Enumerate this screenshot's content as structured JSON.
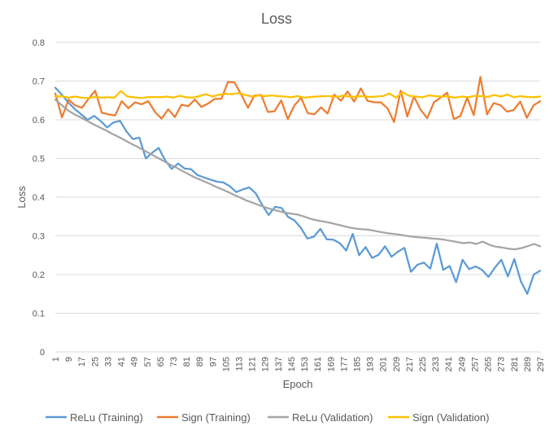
{
  "chart_data": {
    "type": "line",
    "title": "Loss",
    "xlabel": "Epoch",
    "ylabel": "Loss",
    "ylim": [
      0,
      0.8
    ],
    "yticks": [
      "0",
      "0.1",
      "0.2",
      "0.3",
      "0.4",
      "0.5",
      "0.6",
      "0.7",
      "0.8"
    ],
    "grid": "horizontal",
    "legend_position": "bottom",
    "x_start": 1,
    "x_step": 4,
    "x_tick_labels": [
      "1",
      "9",
      "17",
      "25",
      "33",
      "41",
      "49",
      "57",
      "65",
      "73",
      "81",
      "89",
      "97",
      "105",
      "113",
      "121",
      "129",
      "137",
      "145",
      "153",
      "161",
      "169",
      "177",
      "185",
      "193",
      "201",
      "209",
      "217",
      "225",
      "233",
      "241",
      "249",
      "257",
      "265",
      "273",
      "281",
      "289",
      "297"
    ],
    "series": [
      {
        "name": "ReLu (Training)",
        "color": "#5B9BD5",
        "values": [
          0.683,
          0.665,
          0.645,
          0.628,
          0.614,
          0.6,
          0.61,
          0.597,
          0.58,
          0.593,
          0.597,
          0.57,
          0.55,
          0.554,
          0.5,
          0.515,
          0.527,
          0.495,
          0.473,
          0.487,
          0.474,
          0.472,
          0.457,
          0.451,
          0.445,
          0.44,
          0.438,
          0.428,
          0.413,
          0.42,
          0.425,
          0.41,
          0.38,
          0.354,
          0.375,
          0.372,
          0.349,
          0.34,
          0.32,
          0.293,
          0.298,
          0.318,
          0.291,
          0.29,
          0.281,
          0.262,
          0.305,
          0.25,
          0.271,
          0.243,
          0.251,
          0.273,
          0.246,
          0.259,
          0.269,
          0.207,
          0.225,
          0.231,
          0.215,
          0.28,
          0.212,
          0.222,
          0.18,
          0.238,
          0.214,
          0.221,
          0.212,
          0.194,
          0.218,
          0.238,
          0.195,
          0.24,
          0.183,
          0.15,
          0.2,
          0.21
        ]
      },
      {
        "name": "Sign (Training)",
        "color": "#ED7D31",
        "values": [
          0.668,
          0.606,
          0.652,
          0.637,
          0.631,
          0.654,
          0.675,
          0.618,
          0.614,
          0.611,
          0.648,
          0.63,
          0.645,
          0.64,
          0.648,
          0.62,
          0.603,
          0.627,
          0.607,
          0.639,
          0.635,
          0.652,
          0.633,
          0.642,
          0.654,
          0.654,
          0.698,
          0.696,
          0.665,
          0.631,
          0.663,
          0.664,
          0.62,
          0.622,
          0.65,
          0.602,
          0.637,
          0.657,
          0.617,
          0.614,
          0.632,
          0.616,
          0.665,
          0.649,
          0.673,
          0.647,
          0.681,
          0.649,
          0.645,
          0.645,
          0.63,
          0.594,
          0.675,
          0.608,
          0.66,
          0.626,
          0.604,
          0.645,
          0.657,
          0.67,
          0.602,
          0.61,
          0.657,
          0.612,
          0.711,
          0.614,
          0.643,
          0.638,
          0.621,
          0.625,
          0.647,
          0.605,
          0.637,
          0.648
        ]
      },
      {
        "name": "ReLu (Validation)",
        "color": "#A5A5A5",
        "values": [
          0.652,
          0.638,
          0.624,
          0.614,
          0.606,
          0.597,
          0.588,
          0.58,
          0.572,
          0.563,
          0.555,
          0.546,
          0.537,
          0.529,
          0.52,
          0.511,
          0.502,
          0.493,
          0.484,
          0.476,
          0.467,
          0.458,
          0.45,
          0.443,
          0.436,
          0.428,
          0.421,
          0.414,
          0.406,
          0.399,
          0.391,
          0.385,
          0.379,
          0.373,
          0.368,
          0.364,
          0.36,
          0.357,
          0.355,
          0.35,
          0.344,
          0.34,
          0.337,
          0.334,
          0.33,
          0.326,
          0.322,
          0.319,
          0.317,
          0.316,
          0.313,
          0.31,
          0.307,
          0.305,
          0.303,
          0.3,
          0.298,
          0.296,
          0.295,
          0.293,
          0.292,
          0.29,
          0.287,
          0.284,
          0.281,
          0.283,
          0.279,
          0.285,
          0.277,
          0.272,
          0.27,
          0.267,
          0.265,
          0.268,
          0.273,
          0.279,
          0.273
        ]
      },
      {
        "name": "Sign (Validation)",
        "color": "#FFC000",
        "values": [
          0.66,
          0.661,
          0.657,
          0.66,
          0.657,
          0.656,
          0.659,
          0.657,
          0.658,
          0.657,
          0.674,
          0.66,
          0.658,
          0.656,
          0.658,
          0.659,
          0.658,
          0.66,
          0.657,
          0.662,
          0.658,
          0.657,
          0.661,
          0.666,
          0.66,
          0.665,
          0.667,
          0.666,
          0.669,
          0.664,
          0.66,
          0.663,
          0.661,
          0.663,
          0.661,
          0.66,
          0.658,
          0.661,
          0.657,
          0.659,
          0.66,
          0.661,
          0.661,
          0.659,
          0.663,
          0.659,
          0.66,
          0.661,
          0.659,
          0.66,
          0.661,
          0.668,
          0.657,
          0.671,
          0.662,
          0.66,
          0.658,
          0.663,
          0.661,
          0.66,
          0.66,
          0.657,
          0.66,
          0.658,
          0.662,
          0.661,
          0.659,
          0.664,
          0.66,
          0.665,
          0.658,
          0.661,
          0.659,
          0.658,
          0.66
        ]
      }
    ]
  }
}
